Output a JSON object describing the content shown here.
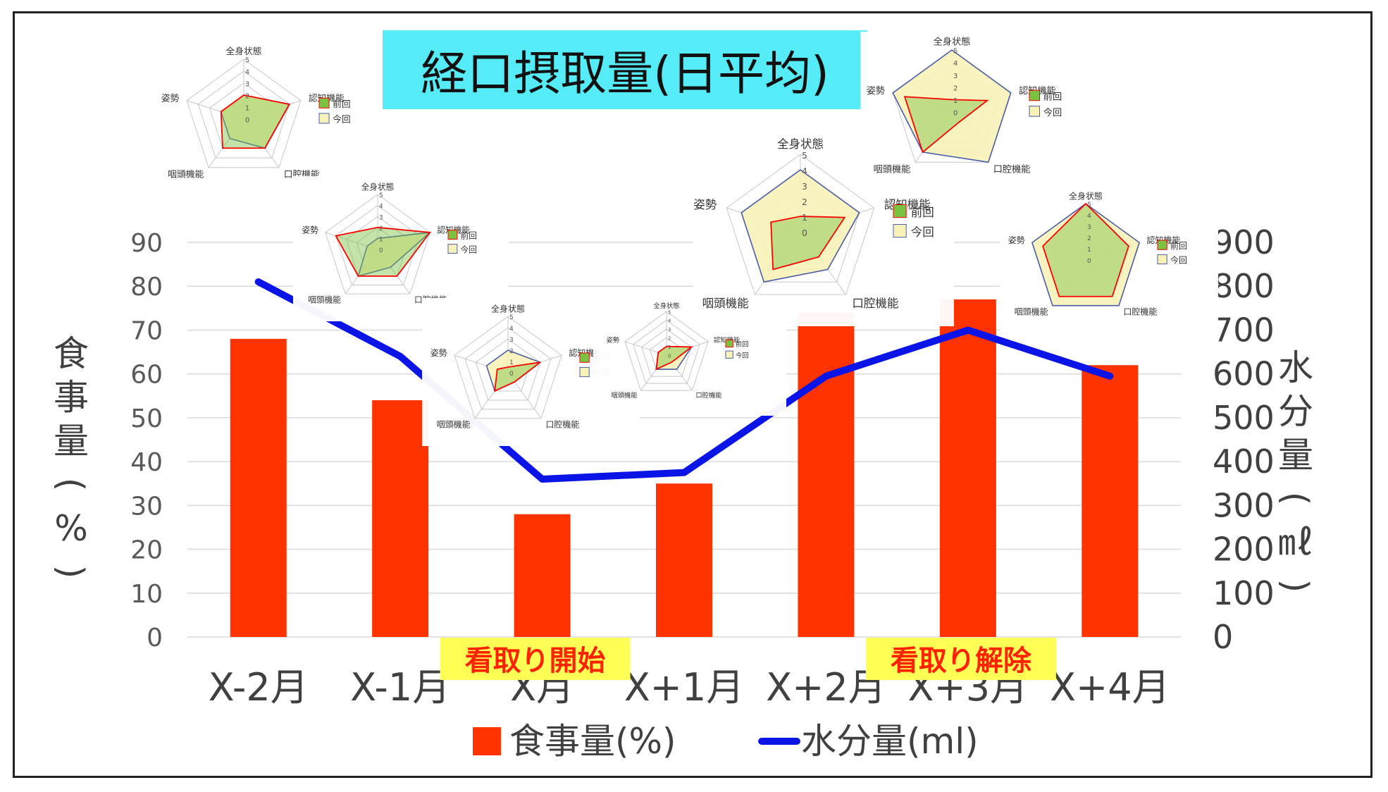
{
  "chart_data": {
    "type": "bar",
    "title": "経口摂取量(日平均)",
    "title_bg": "#55ecf7",
    "categories": [
      "X-2月",
      "X-1月",
      "X月",
      "X+1月",
      "X+2月",
      "X+3月",
      "X+4月"
    ],
    "series": [
      {
        "name": "食事量(%)",
        "type": "bar",
        "axis": "left",
        "color": "#ff3300",
        "values": [
          68,
          54,
          28,
          35,
          74,
          77,
          62
        ]
      },
      {
        "name": "水分量(ml)",
        "type": "line",
        "axis": "right",
        "color": "#0a14e6",
        "values": [
          810,
          640,
          360,
          375,
          595,
          700,
          595
        ]
      }
    ],
    "ylabel_left": "食事量(%)",
    "ylabel_right": "水分量(㎖)",
    "ylim_left": [
      0,
      90
    ],
    "ylim_right": [
      0,
      900
    ],
    "yticks_left": [
      "0",
      "10",
      "20",
      "30",
      "40",
      "50",
      "60",
      "70",
      "80",
      "90"
    ],
    "yticks_right": [
      "0",
      "100",
      "200",
      "300",
      "400",
      "500",
      "600",
      "700",
      "800",
      "900"
    ],
    "grid": true,
    "legend_position": "bottom",
    "annotations": [
      {
        "text": "看取り開始",
        "category": "X月",
        "bg": "#ffff55",
        "color": "#ff2200"
      },
      {
        "text": "看取り解除",
        "category": "X+3月",
        "bg": "#ffff55",
        "color": "#ff2200"
      }
    ],
    "radar_insets": {
      "axes": [
        "全身状態",
        "認知機能",
        "口腔機能",
        "咽頭機能",
        "姿勢"
      ],
      "ticks": [
        "0",
        "1",
        "2",
        "3",
        "4",
        "5"
      ],
      "legend": [
        "前回",
        "今回"
      ],
      "colors": {
        "prev_line": "#ff0000",
        "prev_fill": "#7bc242",
        "curr_line": "#4a5da8",
        "curr_fill": "#f8f2b8"
      },
      "charts": [
        {
          "prev": [
            2,
            4,
            3,
            3,
            2
          ],
          "curr": [
            2,
            4,
            3,
            2,
            2
          ]
        },
        {
          "prev": [
            2,
            5,
            3,
            3,
            4
          ],
          "curr": [
            1,
            5,
            2,
            3,
            1
          ]
        },
        {
          "prev": [
            0.5,
            3,
            1,
            2,
            1
          ],
          "curr": [
            2,
            3,
            1,
            2,
            2
          ]
        },
        {
          "prev": [
            1,
            3,
            1,
            2,
            1
          ],
          "curr": [
            1,
            3,
            2,
            2,
            1
          ]
        },
        {
          "prev": [
            1,
            3,
            2,
            3,
            2
          ],
          "curr": [
            4,
            4,
            3,
            4,
            4
          ]
        },
        {
          "prev": [
            1,
            3,
            1,
            4,
            4
          ],
          "curr": [
            5,
            5,
            5,
            4,
            5
          ]
        },
        {
          "prev": [
            5,
            4,
            4,
            4,
            4
          ],
          "curr": [
            5,
            5,
            5,
            5,
            5
          ]
        }
      ]
    }
  }
}
